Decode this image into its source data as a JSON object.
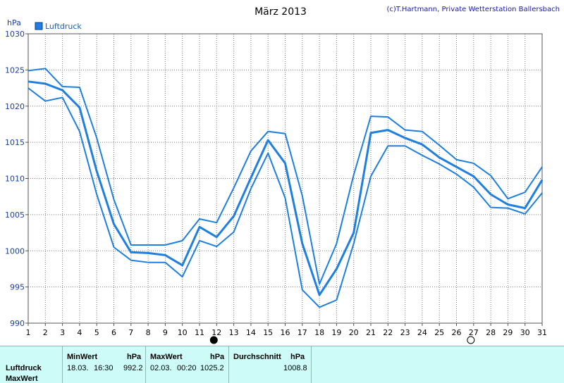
{
  "chart_data": {
    "type": "line",
    "title": "März 2013",
    "copyright": "(c)T.Hartmann, Private Wetterstation Ballersbach",
    "ylabel": "hPa",
    "legend": [
      "Luftdruck"
    ],
    "legend_placement": "top-left",
    "grid": true,
    "colors": {
      "line": "#1e7fe0",
      "grid": "#7a7a7a"
    },
    "ylim": [
      990,
      1030
    ],
    "yticks": [
      "1030",
      "1025",
      "1020",
      "1015",
      "1010",
      "1005",
      "1000",
      "995",
      "990"
    ],
    "x": [
      1,
      2,
      3,
      4,
      5,
      6,
      7,
      8,
      9,
      10,
      11,
      12,
      13,
      14,
      15,
      16,
      17,
      18,
      19,
      20,
      21,
      22,
      23,
      24,
      25,
      26,
      27,
      28,
      29,
      30,
      31
    ],
    "series": [
      {
        "name": "Luftdruck",
        "values": [
          1023.4,
          1023.1,
          1022.2,
          1019.8,
          1011.0,
          1003.7,
          999.8,
          999.7,
          999.4,
          998.0,
          1003.3,
          1001.9,
          1004.8,
          1010.1,
          1015.3,
          1012.1,
          1001.0,
          993.9,
          997.5,
          1002.5,
          1016.3,
          1016.7,
          1015.6,
          1014.7,
          1012.9,
          1011.6,
          1010.3,
          1007.8,
          1006.4,
          1005.9,
          1009.8
        ]
      },
      {
        "role": "max",
        "values": [
          1024.9,
          1025.2,
          1022.7,
          1022.6,
          1015.6,
          1007.1,
          1000.8,
          1000.8,
          1000.8,
          1001.4,
          1004.4,
          1003.9,
          1008.7,
          1013.8,
          1016.5,
          1016.2,
          1007.6,
          995.4,
          1001.0,
          1010.5,
          1018.6,
          1018.5,
          1016.7,
          1016.5,
          1014.6,
          1012.6,
          1012.1,
          1010.4,
          1007.2,
          1008.1,
          1011.6
        ]
      },
      {
        "role": "min",
        "values": [
          1022.5,
          1020.7,
          1021.2,
          1016.5,
          1007.8,
          1000.5,
          998.7,
          998.4,
          998.4,
          996.4,
          1001.4,
          1000.6,
          1002.6,
          1008.6,
          1013.5,
          1007.3,
          994.6,
          992.2,
          993.2,
          1001.0,
          1010.3,
          1014.5,
          1014.5,
          1013.2,
          1012.0,
          1010.6,
          1008.8,
          1006.0,
          1005.9,
          1005.1,
          1008.0
        ]
      }
    ],
    "markers": [
      {
        "day": 12,
        "name": "new-moon",
        "fill": "#000000"
      },
      {
        "day": 27,
        "name": "full-moon",
        "fill": "#ffffff"
      }
    ]
  },
  "stats": {
    "labels": {
      "row1": "Luftdruck",
      "row2": "MaxWert"
    },
    "min": {
      "header": "MinWert",
      "unit": "hPa",
      "date": "18.03.",
      "time": "16:30",
      "value": "992.2"
    },
    "max": {
      "header": "MaxWert",
      "unit": "hPa",
      "date": "02.03.",
      "time": "00:20",
      "value": "1025.2"
    },
    "avg": {
      "header": "Durchschnitt",
      "unit": "hPa",
      "value": "1008.8"
    }
  }
}
